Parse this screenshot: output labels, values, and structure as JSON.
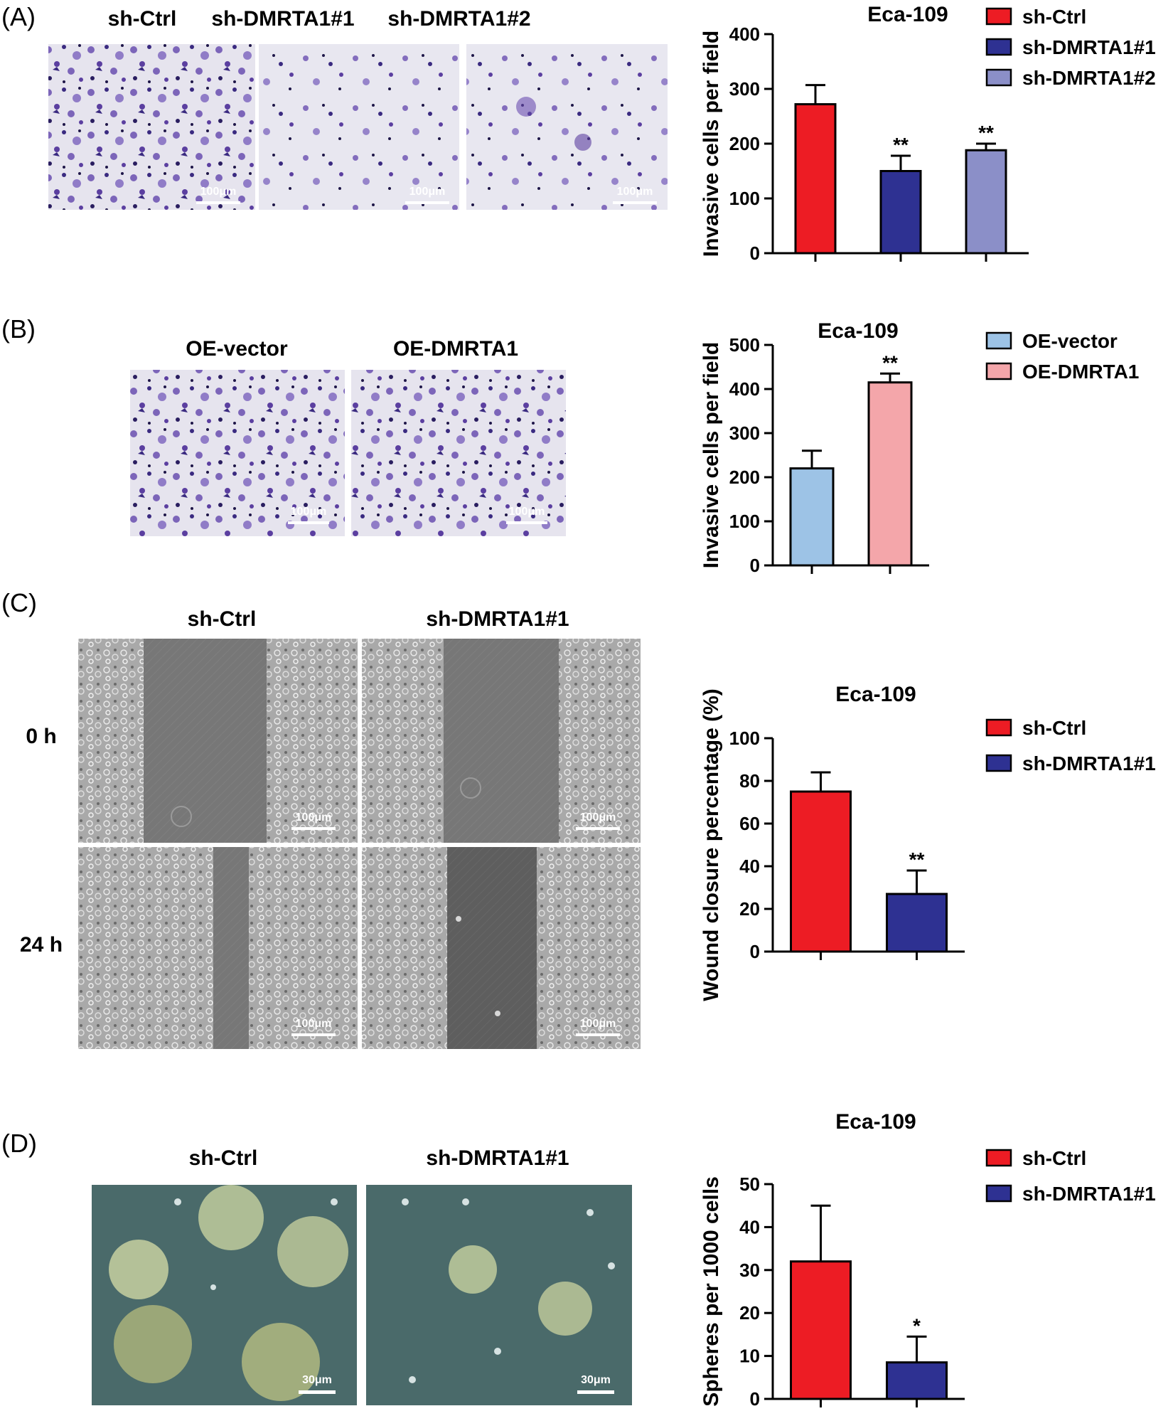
{
  "panels": [
    {
      "label": "(A)",
      "image_labels": [
        "sh-Ctrl",
        "sh-DMRTA1#1",
        "sh-DMRTA1#2"
      ],
      "scale_bar": "100μm",
      "chart": {
        "type": "bar",
        "title": "Eca-109",
        "ylabel": "Invasive cells per field",
        "categories": [
          "sh-Ctrl",
          "sh-DMRTA1#1",
          "sh-DMRTA1#2"
        ],
        "values": [
          272,
          150,
          188
        ],
        "errors": [
          35,
          28,
          12
        ],
        "significance": [
          "",
          "**",
          "**"
        ],
        "colors": [
          "#ed1c24",
          "#2e3192",
          "#8b8fc8"
        ],
        "ylim": [
          0,
          400
        ],
        "yticks": [
          0,
          100,
          200,
          300,
          400
        ],
        "legend": [
          "sh-Ctrl",
          "sh-DMRTA1#1",
          "sh-DMRTA1#2"
        ],
        "legend_position": "right"
      }
    },
    {
      "label": "(B)",
      "image_labels": [
        "OE-vector",
        "OE-DMRTA1"
      ],
      "scale_bar": "100μm",
      "chart": {
        "type": "bar",
        "title": "Eca-109",
        "ylabel": "Invasive cells per field",
        "categories": [
          "OE-vector",
          "OE-DMRTA1"
        ],
        "values": [
          220,
          415
        ],
        "errors": [
          40,
          20
        ],
        "significance": [
          "",
          "**"
        ],
        "colors": [
          "#9dc3e6",
          "#f4a6aa"
        ],
        "ylim": [
          0,
          500
        ],
        "yticks": [
          0,
          100,
          200,
          300,
          400,
          500
        ],
        "legend": [
          "OE-vector",
          "OE-DMRTA1"
        ],
        "legend_position": "right"
      }
    },
    {
      "label": "(C)",
      "image_labels": [
        "sh-Ctrl",
        "sh-DMRTA1#1"
      ],
      "row_labels": [
        "0 h",
        "24 h"
      ],
      "scale_bar": "100μm",
      "chart": {
        "type": "bar",
        "title": "Eca-109",
        "ylabel": "Wound closure percentage (%)",
        "categories": [
          "sh-Ctrl",
          "sh-DMRTA1#1"
        ],
        "values": [
          75,
          27
        ],
        "errors": [
          9,
          11
        ],
        "significance": [
          "",
          "**"
        ],
        "colors": [
          "#ed1c24",
          "#2e3192"
        ],
        "ylim": [
          0,
          100
        ],
        "yticks": [
          0,
          20,
          40,
          60,
          80,
          100
        ],
        "legend": [
          "sh-Ctrl",
          "sh-DMRTA1#1"
        ],
        "legend_position": "right"
      }
    },
    {
      "label": "(D)",
      "image_labels": [
        "sh-Ctrl",
        "sh-DMRTA1#1"
      ],
      "scale_bar": "30μm",
      "chart": {
        "type": "bar",
        "title": "Eca-109",
        "ylabel": "Spheres per 1000 cells",
        "categories": [
          "sh-Ctrl",
          "sh-DMRTA1#1"
        ],
        "values": [
          32,
          8.5
        ],
        "errors": [
          13,
          6
        ],
        "significance": [
          "",
          "*"
        ],
        "colors": [
          "#ed1c24",
          "#2e3192"
        ],
        "ylim": [
          0,
          50
        ],
        "yticks": [
          0,
          10,
          20,
          30,
          40,
          50
        ],
        "legend": [
          "sh-Ctrl",
          "sh-DMRTA1#1"
        ],
        "legend_position": "right"
      }
    }
  ],
  "image_colors": {
    "transwell_bg": "#e6e4ee",
    "transwell_cell": "#5b3fa0",
    "wound_cells": "#9a9a9a",
    "wound_gap": "#6e6e6e",
    "sphere_bg": "#4a6a6a",
    "sphere_cluster": "#b9c79a"
  }
}
